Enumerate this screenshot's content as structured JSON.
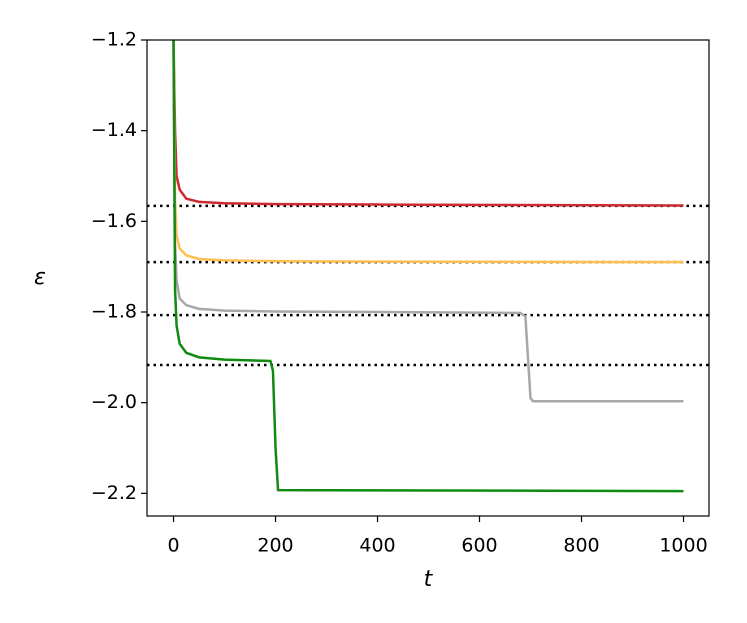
{
  "chart_data": {
    "type": "line",
    "xlabel": "t",
    "ylabel": "ε",
    "xlim": [
      -52,
      1050
    ],
    "ylim": [
      -2.25,
      -1.2
    ],
    "xticks": [
      0,
      200,
      400,
      600,
      800,
      1000
    ],
    "yticks": [
      {
        "value": -2.2,
        "label": "−2.2"
      },
      {
        "value": -2.0,
        "label": "−2.0"
      },
      {
        "value": -1.8,
        "label": "−1.8"
      },
      {
        "value": -1.6,
        "label": "−1.6"
      },
      {
        "value": -1.4,
        "label": "−1.4"
      },
      {
        "value": -1.2,
        "label": "−1.2"
      }
    ],
    "hlines": {
      "values": [
        -1.566,
        -1.69,
        -1.807,
        -1.917
      ],
      "color": "#000000",
      "style": "dotted"
    },
    "series": [
      {
        "color": "#cc2a30",
        "x": [
          0,
          3,
          6,
          12,
          25,
          50,
          100,
          200,
          400,
          1000
        ],
        "values": [
          -1.2,
          -1.4,
          -1.5,
          -1.53,
          -1.55,
          -1.557,
          -1.56,
          -1.562,
          -1.563,
          -1.565
        ]
      },
      {
        "color": "#fdbf4f",
        "x": [
          0,
          3,
          6,
          12,
          25,
          50,
          100,
          200,
          400,
          1000
        ],
        "values": [
          -1.2,
          -1.55,
          -1.63,
          -1.66,
          -1.675,
          -1.683,
          -1.686,
          -1.688,
          -1.689,
          -1.69
        ]
      },
      {
        "color": "#a8a8a8",
        "x": [
          0,
          3,
          6,
          12,
          25,
          50,
          100,
          200,
          400,
          680,
          690,
          695,
          700,
          705,
          1000
        ],
        "values": [
          -1.2,
          -1.65,
          -1.73,
          -1.77,
          -1.785,
          -1.793,
          -1.797,
          -1.799,
          -1.8,
          -1.802,
          -1.81,
          -1.9,
          -1.99,
          -1.997,
          -1.997
        ]
      },
      {
        "color": "#108a10",
        "x": [
          0,
          3,
          6,
          12,
          25,
          50,
          100,
          190,
          195,
          200,
          205,
          1000
        ],
        "values": [
          -1.2,
          -1.75,
          -1.83,
          -1.87,
          -1.89,
          -1.9,
          -1.905,
          -1.908,
          -1.93,
          -2.1,
          -2.193,
          -2.195
        ]
      }
    ]
  }
}
